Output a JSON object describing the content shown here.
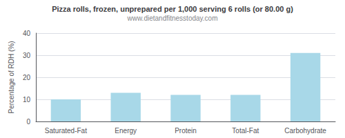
{
  "chart_data": {
    "type": "bar",
    "title": "Pizza rolls, frozen, unprepared per 1,000 serving 6 rolls (or 80.00 g)",
    "subtitle": "www.dietandfitnesstoday.com",
    "ylabel": "Percentage of RDH (%)",
    "categories": [
      "Saturated-Fat",
      "Energy",
      "Protein",
      "Total-Fat",
      "Carbohydrate"
    ],
    "values": [
      10,
      13,
      12,
      12,
      31
    ],
    "color": "#a8d8e8",
    "ylim": [
      0,
      40
    ],
    "yticks": [
      0,
      10,
      20,
      30,
      40
    ],
    "grid": true
  }
}
